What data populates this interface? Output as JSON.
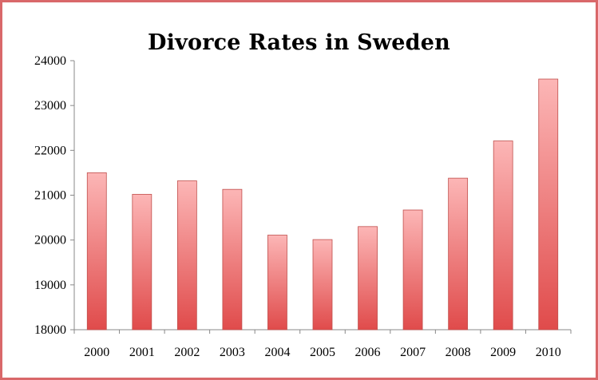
{
  "chart_data": {
    "type": "bar",
    "title": "Divorce Rates in Sweden",
    "xlabel": "",
    "ylabel": "",
    "categories": [
      "2000",
      "2001",
      "2002",
      "2003",
      "2004",
      "2005",
      "2006",
      "2007",
      "2008",
      "2009",
      "2010"
    ],
    "values": [
      21500,
      21020,
      21320,
      21130,
      20110,
      20010,
      20300,
      20670,
      21380,
      22210,
      23590
    ],
    "ylim": [
      18000,
      24000
    ],
    "yticks": [
      18000,
      19000,
      20000,
      21000,
      22000,
      23000,
      24000
    ],
    "grid": false,
    "legend": "none",
    "colors": {
      "bar_top": "#fcb6b6",
      "bar_bottom": "#e04b4b",
      "bar_stroke": "#c0504d",
      "frame": "#d9686a"
    }
  }
}
